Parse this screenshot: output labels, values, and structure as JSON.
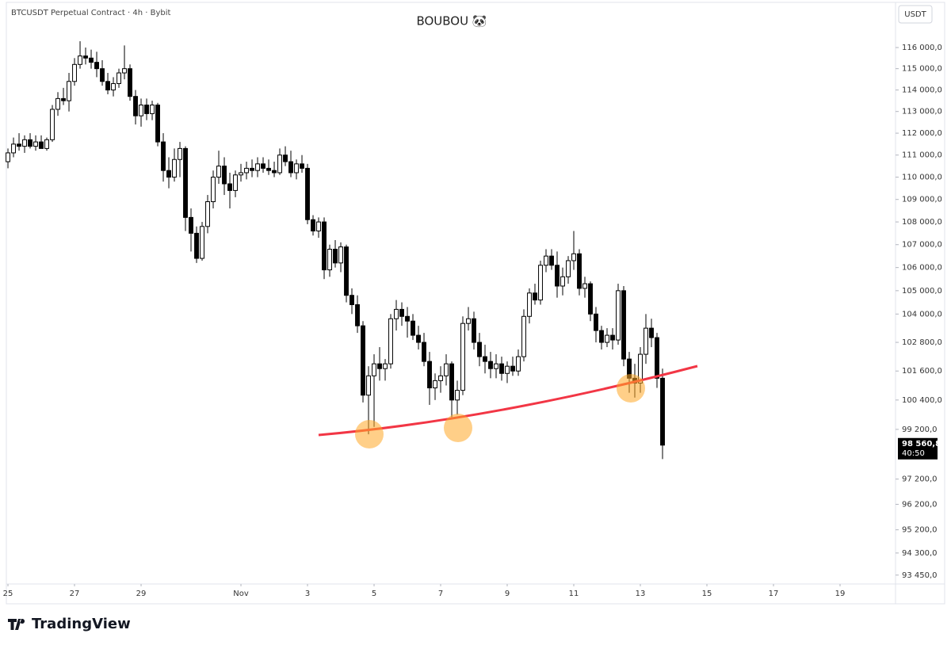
{
  "chart_data": {
    "type": "candlestick",
    "header": "BTCUSDT Perpetual Contract · 4h · Bybit",
    "title": "BOUBOU 🐼",
    "currency": "USDT",
    "log_scale": true,
    "brand": "TradingView",
    "last_price": 98560.8,
    "last_price_label": "98 560,8",
    "countdown": "40:50",
    "up_color": "#ffffff",
    "down_color": "#000000",
    "open": [
      110700,
      111100,
      111500,
      111400,
      111700,
      111400,
      111600,
      111300,
      111700,
      113100,
      113600,
      113500,
      114400,
      115200,
      115600,
      115500,
      115300,
      115000,
      114400,
      114000,
      114300,
      114800,
      115000,
      113700,
      112800,
      113300,
      112900,
      113300,
      111600,
      110300,
      110000,
      110800,
      111300,
      108200,
      107500,
      106400,
      107800,
      108900,
      110000,
      110500,
      109700,
      109400,
      110100,
      110200,
      110400,
      110300,
      110600,
      110400,
      110300,
      110200,
      111000,
      110700,
      110200,
      110600,
      110400,
      108100,
      107600,
      108000,
      105900,
      106800,
      106200,
      106900,
      104800,
      104400,
      103500,
      100600,
      101400,
      101900,
      101700,
      101900,
      103800,
      104200,
      103900,
      103700,
      103100,
      102800,
      102000,
      100900,
      101200,
      101400,
      101900,
      100400,
      100800,
      103600,
      103800,
      102800,
      102200,
      102000,
      101700,
      101900,
      101500,
      101800,
      101600,
      102200,
      103900,
      104900,
      104600,
      106100,
      106500,
      106100,
      105200,
      105600,
      106300,
      106600,
      105100,
      105300,
      104000,
      103300,
      102800,
      103100,
      102900,
      105000,
      102100,
      101300,
      101100,
      102300,
      103400,
      103000,
      101300
    ],
    "high": [
      111300,
      111800,
      112000,
      111900,
      112000,
      111900,
      111900,
      111800,
      113300,
      113900,
      114100,
      114800,
      115500,
      116300,
      116000,
      115900,
      115800,
      115400,
      114800,
      114600,
      115000,
      116100,
      115200,
      114000,
      113600,
      113600,
      113500,
      113400,
      112000,
      110900,
      111300,
      111600,
      111400,
      108600,
      107800,
      108000,
      109200,
      110300,
      111200,
      110900,
      110200,
      110300,
      110600,
      110700,
      110800,
      110900,
      110900,
      110800,
      110700,
      111300,
      111400,
      111200,
      110800,
      111000,
      110600,
      108300,
      108200,
      108200,
      107000,
      107200,
      107100,
      107000,
      105100,
      104800,
      103700,
      101800,
      102300,
      102600,
      102100,
      104000,
      104600,
      104500,
      104300,
      104000,
      103500,
      103200,
      102400,
      101500,
      101800,
      102300,
      102000,
      101200,
      103900,
      104300,
      104100,
      103200,
      102700,
      102400,
      102300,
      102200,
      102000,
      102200,
      102500,
      104200,
      105100,
      105300,
      106300,
      106800,
      106800,
      106700,
      106000,
      106500,
      107600,
      106800,
      105600,
      105400,
      104300,
      103500,
      103400,
      103400,
      105300,
      105200,
      102400,
      101900,
      102600,
      104000,
      103800,
      103200,
      101700
    ],
    "low": [
      110400,
      110900,
      111200,
      111100,
      111300,
      111200,
      111300,
      111200,
      111600,
      112800,
      113300,
      113000,
      114200,
      115000,
      115200,
      115000,
      114600,
      114200,
      113800,
      113700,
      114100,
      114500,
      113500,
      112400,
      112300,
      112600,
      112600,
      111400,
      109800,
      109500,
      109800,
      110000,
      107600,
      106700,
      106200,
      106300,
      107500,
      108600,
      109700,
      109200,
      108600,
      109100,
      109800,
      109900,
      110000,
      110000,
      110200,
      110100,
      110000,
      110100,
      110500,
      110000,
      109900,
      110200,
      107900,
      107400,
      107300,
      105500,
      105600,
      106000,
      105800,
      104500,
      104000,
      103200,
      100300,
      99000,
      99300,
      101200,
      101200,
      101700,
      103300,
      103500,
      103000,
      102900,
      102500,
      101800,
      100200,
      100400,
      100700,
      101000,
      99700,
      99800,
      100600,
      103300,
      102500,
      101800,
      101500,
      101300,
      101300,
      101200,
      101100,
      101400,
      101400,
      102000,
      103600,
      104400,
      104400,
      105800,
      105900,
      104700,
      104800,
      105300,
      105900,
      104800,
      104700,
      103700,
      102800,
      102500,
      102600,
      102500,
      102700,
      101800,
      100700,
      100500,
      100700,
      101900,
      102600,
      100900,
      98000
    ],
    "close": [
      111100,
      111500,
      111400,
      111700,
      111400,
      111600,
      111300,
      111700,
      113100,
      113600,
      113500,
      114400,
      115200,
      115600,
      115500,
      115300,
      115000,
      114400,
      114000,
      114300,
      114800,
      115000,
      113700,
      112800,
      113300,
      112900,
      113300,
      111600,
      110300,
      110000,
      110800,
      111300,
      108200,
      107500,
      106400,
      107800,
      108900,
      110000,
      110500,
      109700,
      109400,
      110100,
      110200,
      110400,
      110300,
      110600,
      110400,
      110300,
      110200,
      111000,
      110700,
      110200,
      110600,
      110400,
      108100,
      107600,
      108000,
      105900,
      106800,
      106200,
      106900,
      104800,
      104400,
      103500,
      100600,
      101400,
      101900,
      101700,
      101900,
      103800,
      104200,
      103900,
      103700,
      103100,
      102800,
      102000,
      100900,
      101200,
      101400,
      101900,
      100400,
      100800,
      103600,
      103800,
      102800,
      102200,
      102000,
      101700,
      101900,
      101500,
      101800,
      101600,
      102200,
      103900,
      104900,
      104600,
      106100,
      106500,
      106100,
      105200,
      105600,
      106300,
      106600,
      105100,
      105300,
      104000,
      103300,
      102800,
      103100,
      102900,
      105000,
      102100,
      101300,
      101100,
      102300,
      103400,
      103000,
      101300,
      98560.8
    ],
    "ylim": [
      93110,
      117975
    ],
    "yticks": [
      {
        "value": 116000,
        "label": "116 000,0"
      },
      {
        "value": 115000,
        "label": "115 000,0"
      },
      {
        "value": 114000,
        "label": "114 000,0"
      },
      {
        "value": 113000,
        "label": "113 000,0"
      },
      {
        "value": 112000,
        "label": "112 000,0"
      },
      {
        "value": 111000,
        "label": "111 000,0"
      },
      {
        "value": 110000,
        "label": "110 000,0"
      },
      {
        "value": 109000,
        "label": "109 000,0"
      },
      {
        "value": 108000,
        "label": "108 000,0"
      },
      {
        "value": 107000,
        "label": "107 000,0"
      },
      {
        "value": 106000,
        "label": "106 000,0"
      },
      {
        "value": 105000,
        "label": "105 000,0"
      },
      {
        "value": 104000,
        "label": "104 000,0"
      },
      {
        "value": 102800,
        "label": "102 800,0"
      },
      {
        "value": 101600,
        "label": "101 600,0"
      },
      {
        "value": 100400,
        "label": "100 400,0"
      },
      {
        "value": 99200,
        "label": "99 200,0"
      },
      {
        "value": 97200,
        "label": "97 200,0"
      },
      {
        "value": 96200,
        "label": "96 200,0"
      },
      {
        "value": 95200,
        "label": "95 200,0"
      },
      {
        "value": 94300,
        "label": "94 300,0"
      },
      {
        "value": 93450,
        "label": "93 450,0"
      }
    ],
    "xlim": [
      -0.29,
      160
    ],
    "xticks": [
      {
        "value": 0,
        "label": "25"
      },
      {
        "value": 12,
        "label": "27"
      },
      {
        "value": 24,
        "label": "29"
      },
      {
        "value": 42,
        "label": "Nov"
      },
      {
        "value": 54,
        "label": "3"
      },
      {
        "value": 66,
        "label": "5"
      },
      {
        "value": 78,
        "label": "7"
      },
      {
        "value": 90,
        "label": "9"
      },
      {
        "value": 102,
        "label": "11"
      },
      {
        "value": 114,
        "label": "13"
      },
      {
        "value": 126,
        "label": "15"
      },
      {
        "value": 138,
        "label": "17"
      },
      {
        "value": 150,
        "label": "19"
      }
    ]
  }
}
